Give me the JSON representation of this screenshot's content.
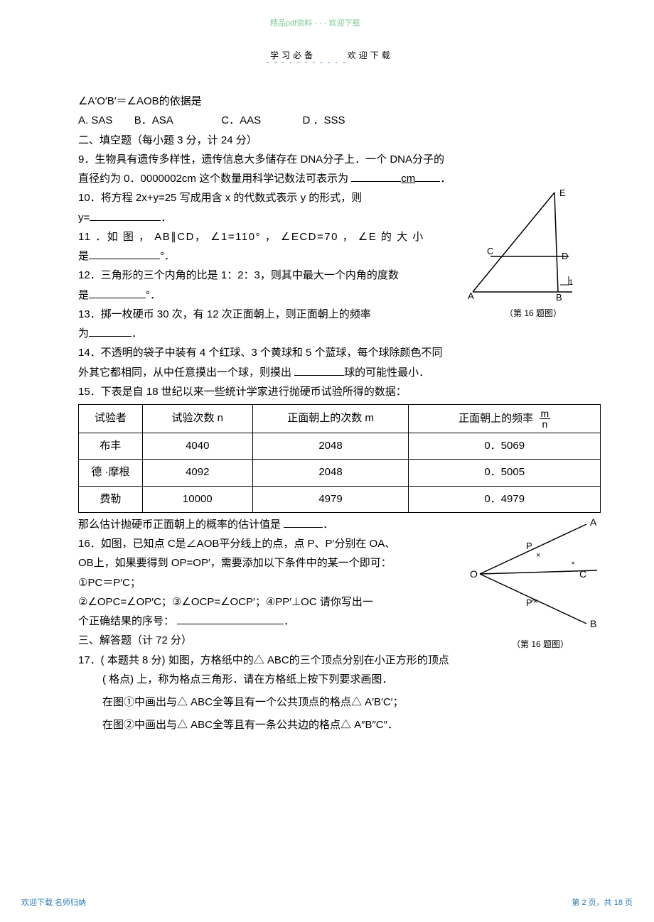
{
  "top_watermark": "精品pdf资料 - - - 欢迎下载",
  "header_left": "学习必备",
  "header_right": "欢迎下载",
  "header_dashes": "- - - - - - - - - - -",
  "q8_line": "∠A′O′B′＝∠AOB的依据是",
  "q8_opts": {
    "a": "A. SAS",
    "b": "B．ASA",
    "c": "C．AAS",
    "d": "D ．SSS"
  },
  "section2_title": "二、填空题（每小题    3 分，计 24 分）",
  "q9_l1": "9．生物具有遗传多样性，遗传信息大多储存在     DNA分子上．一个  DNA分子的",
  "q9_l2_a": "直径约为 0．0000002cm 这个数量用科学记数法可表示为 ",
  "q9_l2_b": "cm",
  "q9_l2_c": "．",
  "q10_l1": "10．将方程    2x+y=25 写成用含    x 的代数式表示    y 的形式，则",
  "q10_l2": "y=",
  "q10_l2_end": "．",
  "q11_l1": "11 ．如 图 ， AB∥CD， ∠1=110° ， ∠ECD=70 ， ∠E 的 大 小",
  "q11_l2": "是",
  "q11_l2_end": "°．",
  "q12_l1": "12．三角形的三个内角的比是    1：2：3，则其中最大一个内角的度数",
  "q12_l2": "是",
  "q12_l2_end": "°．",
  "q13_l1": "13．掷一枚硬币    30 次，有    12 次正面朝上，则正面朝上的频率",
  "q13_l2": "为",
  "q13_l2_end": "．",
  "q14_l1": "14．不透明的袋子中装有    4 个红球、3 个黄球和 5 个蓝球，每个球除颜色不同",
  "q14_l2_a": "外其它都相同，从中任意摸出一个球，则摸出    ",
  "q14_l2_b": "球的可能性最小．",
  "q15_intro": "15．下表是自    18 世纪以来一些统计学家进行抛硬币试验所得的数据：",
  "table": {
    "headers": [
      "试验者",
      "试验次数  n",
      "正面朝上的次数  m",
      "正面朝上的频率"
    ],
    "frac_num": "m",
    "frac_den": "n",
    "rows": [
      [
        "布丰",
        "4040",
        "2048",
        "0．5069"
      ],
      [
        "德 ·摩根",
        "4092",
        "2048",
        "0．5005"
      ],
      [
        "费勒",
        "10000",
        "4979",
        "0．4979"
      ]
    ],
    "col_widths": [
      "90px",
      "155px",
      "220px",
      "270px"
    ]
  },
  "q15_after_a": "那么估计抛硬币正面朝上的概率的估计值是    ",
  "q15_after_b": "．",
  "q16_l1": "16．如图，已知点  C是∠AOB平分线上的点，点    P、P′分别在 OA、",
  "q16_l2": "OB上，如果要得到  OP=OP′，需要添加以下条件中的某一个即可：",
  "q16_l3": "①PC＝P′C；",
  "q16_l4": "②∠OPC=∠OP′C；③∠OCP=∠OCP′；④PP′⊥OC 请你写出一",
  "q16_l5_a": "个正确结果的序号：    ",
  "q16_l5_b": "．",
  "section3_title": "三、解答题（计    72 分）",
  "q17_l1": "17．( 本题共  8 分) 如图，方格纸中的△  ABC的三个顶点分别在小正方形的顶点",
  "q17_l2": "( 格点) 上，称为格点三角形．请在方格纸上按下列要求画图．",
  "q17_l3": "在图①中画出与△    ABC全等且有一个公共顶点的格点△    A′B′C′；",
  "q17_l4": "在图②中画出与△    ABC全等且有一条公共边的格点△    A″B″C″．",
  "figure_caption_11": "（第  16 题图）",
  "figure_caption_16": "（第  16 题图）",
  "diagram11": {
    "labels": {
      "A": "A",
      "B": "B",
      "C": "C",
      "D": "D",
      "E": "E",
      "one": "1"
    }
  },
  "diagram16": {
    "labels": {
      "O": "O",
      "A": "A",
      "B": "B",
      "C": "C",
      "P": "P",
      "Pp": "P′"
    }
  },
  "bottom_left": "欢迎下载    名师归纳",
  "bottom_right": "第 2 页，共 18 页"
}
